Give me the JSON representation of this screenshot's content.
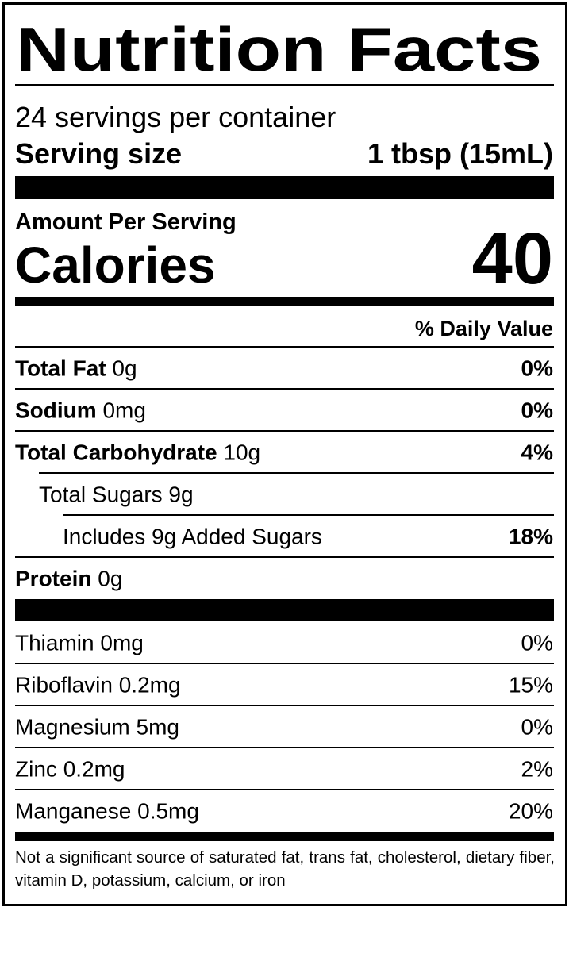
{
  "title": "Nutrition Facts",
  "servings": "24 servings per container",
  "serving_size": {
    "label": "Serving size",
    "value": "1 tbsp (15mL)"
  },
  "amount_per_serving": "Amount Per Serving",
  "calories": {
    "label": "Calories",
    "value": "40"
  },
  "dv_header": "% Daily Value",
  "nutrients": [
    {
      "name": "Total Fat",
      "amount": "0g",
      "dv": "0%",
      "bold": true,
      "level": 0
    },
    {
      "name": "Sodium",
      "amount": "0mg",
      "dv": "0%",
      "bold": true,
      "level": 0
    },
    {
      "name": "Total Carbohydrate",
      "amount": "10g",
      "dv": "4%",
      "bold": true,
      "level": 0
    },
    {
      "name": "Total Sugars",
      "amount": "9g",
      "bold": false,
      "level": 1
    },
    {
      "name": "Includes 9g Added Sugars",
      "dv": "18%",
      "bold": false,
      "level": 2
    },
    {
      "name": "Protein",
      "amount": "0g",
      "bold": true,
      "level": 0
    }
  ],
  "vitamins": [
    {
      "name": "Thiamin",
      "amount": "0mg",
      "dv": "0%"
    },
    {
      "name": "Riboflavin",
      "amount": "0.2mg",
      "dv": "15%"
    },
    {
      "name": "Magnesium",
      "amount": "5mg",
      "dv": "0%"
    },
    {
      "name": "Zinc",
      "amount": "0.2mg",
      "dv": "2%"
    },
    {
      "name": "Manganese",
      "amount": "0.5mg",
      "dv": "20%"
    }
  ],
  "footnote": "Not a significant source of saturated fat, trans fat, cholesterol, dietary fiber, vitamin D, potassium, calcium, or iron"
}
